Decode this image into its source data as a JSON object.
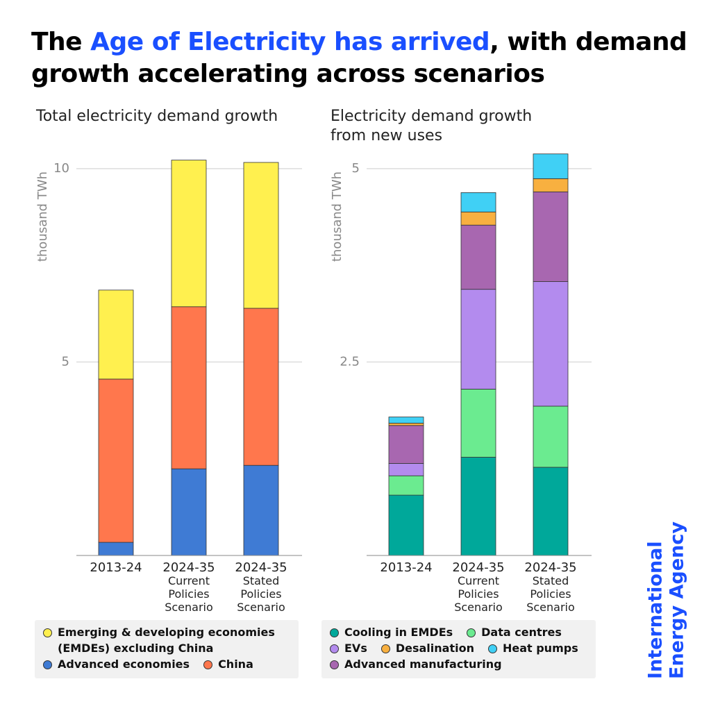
{
  "title": {
    "before": "The ",
    "highlight": "Age of Electricity has arrived",
    "after": ", with demand growth accelerating across scenarios"
  },
  "logo": [
    "International",
    "Energy Agency"
  ],
  "chart_data": [
    {
      "type": "bar",
      "stacked": true,
      "title": "Total electricity demand growth",
      "y_label": "thousand TWh",
      "categories": [
        "2013-24",
        "2024-35 Current Policies Scenario",
        "2024-35 Stated Policies Scenario"
      ],
      "series": [
        {
          "name": "Advanced economies",
          "color": "#3f7bd4",
          "values": [
            0.34,
            2.24,
            2.33
          ]
        },
        {
          "name": "China",
          "color": "#ff774d",
          "values": [
            4.22,
            4.19,
            4.06
          ]
        },
        {
          "name": "Emerging & developing economies (EMDEs) excluding China",
          "color": "#fff04f",
          "values": [
            2.3,
            3.79,
            3.77
          ]
        }
      ],
      "ylim": [
        0,
        10.5
      ],
      "yticks": [
        5,
        10
      ],
      "grid": true
    },
    {
      "type": "bar",
      "stacked": true,
      "title": "Electricity demand growth from new uses",
      "y_label": "thousand TWh",
      "categories": [
        "2013-24",
        "2024-35 Current Policies Scenario",
        "2024-35 Stated Policies Scenario"
      ],
      "series": [
        {
          "name": "Cooling in EMDEs",
          "color": "#00a89a",
          "values": [
            0.78,
            1.27,
            1.14
          ]
        },
        {
          "name": "Data centres",
          "color": "#6beb90",
          "values": [
            0.25,
            0.88,
            0.79
          ]
        },
        {
          "name": "EVs",
          "color": "#b38bee",
          "values": [
            0.16,
            1.29,
            1.61
          ]
        },
        {
          "name": "Advanced manufacturing",
          "color": "#a867b0",
          "values": [
            0.49,
            0.83,
            1.16
          ]
        },
        {
          "name": "Desalination",
          "color": "#f8b040",
          "values": [
            0.03,
            0.17,
            0.17
          ]
        },
        {
          "name": "Heat pumps",
          "color": "#40d0f5",
          "values": [
            0.08,
            0.25,
            0.32
          ]
        }
      ],
      "ylim": [
        0,
        5.25
      ],
      "yticks": [
        2.5,
        5
      ],
      "grid": true
    }
  ]
}
